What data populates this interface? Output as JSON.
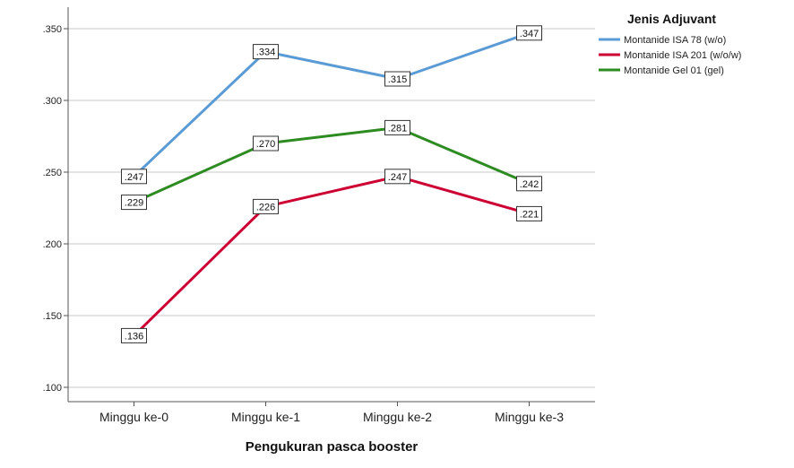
{
  "chart_data": {
    "type": "line",
    "xlabel": "Pengukuran pasca booster",
    "ylabel": "",
    "categories": [
      "Minggu ke-0",
      "Minggu ke-1",
      "Minggu ke-2",
      "Minggu ke-3"
    ],
    "ylim": [
      0.09,
      0.365
    ],
    "yticks": [
      0.1,
      0.15,
      0.2,
      0.25,
      0.3,
      0.35
    ],
    "ytick_labels": [
      ".100",
      ".150",
      ".200",
      ".250",
      ".300",
      ".350"
    ],
    "grid": true,
    "legend": {
      "title": "Jenis Adjuvant",
      "placement": "top-right"
    },
    "series": [
      {
        "name": "Montanide ISA 78 (w/o)",
        "color": "#5b9bd5",
        "values": [
          0.247,
          0.334,
          0.315,
          0.347
        ],
        "labels": [
          ".247",
          ".334",
          ".315",
          ".347"
        ]
      },
      {
        "name": "Montanide ISA 201 (w/o/w)",
        "color": "#cc0033",
        "values": [
          0.136,
          0.226,
          0.247,
          0.221
        ],
        "labels": [
          ".136",
          ".226",
          ".247",
          ".221"
        ]
      },
      {
        "name": "Montanide Gel 01 (gel)",
        "color": "#2e8b22",
        "values": [
          0.229,
          0.27,
          0.281,
          0.242
        ],
        "labels": [
          ".229",
          ".270",
          ".281",
          ".242"
        ]
      }
    ]
  }
}
